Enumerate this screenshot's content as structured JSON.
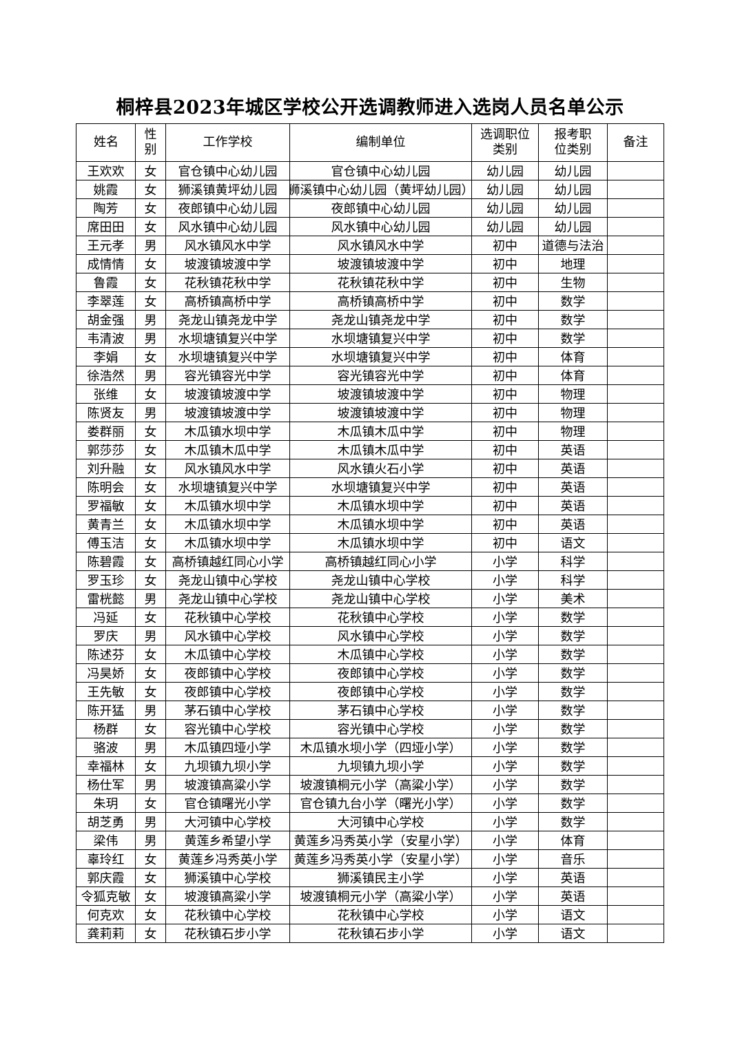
{
  "title": "桐梓县2023年城区学校公开选调教师进入选岗人员名单公示",
  "headers": [
    "姓名",
    "性别",
    "工作学校",
    "编制单位",
    "选调职位类别",
    "报考职位类别",
    "备注"
  ],
  "rows": [
    [
      "王欢欢",
      "女",
      "官仓镇中心幼儿园",
      "官仓镇中心幼儿园",
      "幼儿园",
      "幼儿园",
      ""
    ],
    [
      "姚霞",
      "女",
      "狮溪镇黄坪幼儿园",
      "狮溪镇中心幼儿园（黄坪幼儿园）",
      "幼儿园",
      "幼儿园",
      ""
    ],
    [
      "陶芳",
      "女",
      "夜郎镇中心幼儿园",
      "夜郎镇中心幼儿园",
      "幼儿园",
      "幼儿园",
      ""
    ],
    [
      "席田田",
      "女",
      "风水镇中心幼儿园",
      "风水镇中心幼儿园",
      "幼儿园",
      "幼儿园",
      ""
    ],
    [
      "王元孝",
      "男",
      "风水镇风水中学",
      "风水镇风水中学",
      "初中",
      "道德与法治",
      ""
    ],
    [
      "成情情",
      "女",
      "坡渡镇坡渡中学",
      "坡渡镇坡渡中学",
      "初中",
      "地理",
      ""
    ],
    [
      "鲁霞",
      "女",
      "花秋镇花秋中学",
      "花秋镇花秋中学",
      "初中",
      "生物",
      ""
    ],
    [
      "李翠莲",
      "女",
      "高桥镇高桥中学",
      "高桥镇高桥中学",
      "初中",
      "数学",
      ""
    ],
    [
      "胡金强",
      "男",
      "尧龙山镇尧龙中学",
      "尧龙山镇尧龙中学",
      "初中",
      "数学",
      ""
    ],
    [
      "韦清波",
      "男",
      "水坝塘镇复兴中学",
      "水坝塘镇复兴中学",
      "初中",
      "数学",
      ""
    ],
    [
      "李娟",
      "女",
      "水坝塘镇复兴中学",
      "水坝塘镇复兴中学",
      "初中",
      "体育",
      ""
    ],
    [
      "徐浩然",
      "男",
      "容光镇容光中学",
      "容光镇容光中学",
      "初中",
      "体育",
      ""
    ],
    [
      "张维",
      "女",
      "坡渡镇坡渡中学",
      "坡渡镇坡渡中学",
      "初中",
      "物理",
      ""
    ],
    [
      "陈贤友",
      "男",
      "坡渡镇坡渡中学",
      "坡渡镇坡渡中学",
      "初中",
      "物理",
      ""
    ],
    [
      "娄群丽",
      "女",
      "木瓜镇水坝中学",
      "木瓜镇木瓜中学",
      "初中",
      "物理",
      ""
    ],
    [
      "郭莎莎",
      "女",
      "木瓜镇木瓜中学",
      "木瓜镇木瓜中学",
      "初中",
      "英语",
      ""
    ],
    [
      "刘升融",
      "女",
      "风水镇风水中学",
      "风水镇火石小学",
      "初中",
      "英语",
      ""
    ],
    [
      "陈明会",
      "女",
      "水坝塘镇复兴中学",
      "水坝塘镇复兴中学",
      "初中",
      "英语",
      ""
    ],
    [
      "罗福敏",
      "女",
      "木瓜镇水坝中学",
      "木瓜镇水坝中学",
      "初中",
      "英语",
      ""
    ],
    [
      "黄青兰",
      "女",
      "木瓜镇水坝中学",
      "木瓜镇水坝中学",
      "初中",
      "英语",
      ""
    ],
    [
      "傅玉洁",
      "女",
      "木瓜镇水坝中学",
      "木瓜镇水坝中学",
      "初中",
      "语文",
      ""
    ],
    [
      "陈碧霞",
      "女",
      "高桥镇越红同心小学",
      "高桥镇越红同心小学",
      "小学",
      "科学",
      ""
    ],
    [
      "罗玉珍",
      "女",
      "尧龙山镇中心学校",
      "尧龙山镇中心学校",
      "小学",
      "科学",
      ""
    ],
    [
      "雷桄懿",
      "男",
      "尧龙山镇中心学校",
      "尧龙山镇中心学校",
      "小学",
      "美术",
      ""
    ],
    [
      "冯延",
      "女",
      "花秋镇中心学校",
      "花秋镇中心学校",
      "小学",
      "数学",
      ""
    ],
    [
      "罗庆",
      "男",
      "风水镇中心学校",
      "风水镇中心学校",
      "小学",
      "数学",
      ""
    ],
    [
      "陈述芬",
      "女",
      "木瓜镇中心学校",
      "木瓜镇中心学校",
      "小学",
      "数学",
      ""
    ],
    [
      "冯昊娇",
      "女",
      "夜郎镇中心学校",
      "夜郎镇中心学校",
      "小学",
      "数学",
      ""
    ],
    [
      "王先敏",
      "女",
      "夜郎镇中心学校",
      "夜郎镇中心学校",
      "小学",
      "数学",
      ""
    ],
    [
      "陈开猛",
      "男",
      "茅石镇中心学校",
      "茅石镇中心学校",
      "小学",
      "数学",
      ""
    ],
    [
      "杨群",
      "女",
      "容光镇中心学校",
      "容光镇中心学校",
      "小学",
      "数学",
      ""
    ],
    [
      "骆波",
      "男",
      "木瓜镇四垭小学",
      "木瓜镇水坝小学（四垭小学）",
      "小学",
      "数学",
      ""
    ],
    [
      "幸福林",
      "女",
      "九坝镇九坝小学",
      "九坝镇九坝小学",
      "小学",
      "数学",
      ""
    ],
    [
      "杨仕军",
      "男",
      "坡渡镇高粱小学",
      "坡渡镇桐元小学（高粱小学）",
      "小学",
      "数学",
      ""
    ],
    [
      "朱玥",
      "女",
      "官仓镇曙光小学",
      "官仓镇九台小学（曙光小学）",
      "小学",
      "数学",
      ""
    ],
    [
      "胡芝勇",
      "男",
      "大河镇中心学校",
      "大河镇中心学校",
      "小学",
      "数学",
      ""
    ],
    [
      "梁伟",
      "男",
      "黄莲乡希望小学",
      "黄莲乡冯秀英小学（安星小学）",
      "小学",
      "体育",
      ""
    ],
    [
      "辜玲红",
      "女",
      "黄莲乡冯秀英小学",
      "黄莲乡冯秀英小学（安星小学）",
      "小学",
      "音乐",
      ""
    ],
    [
      "郭庆霞",
      "女",
      "狮溪镇中心学校",
      "狮溪镇民主小学",
      "小学",
      "英语",
      ""
    ],
    [
      "令狐克敏",
      "女",
      "坡渡镇高粱小学",
      "坡渡镇桐元小学（高粱小学）",
      "小学",
      "英语",
      ""
    ],
    [
      "何克欢",
      "女",
      "花秋镇中心学校",
      "花秋镇中心学校",
      "小学",
      "语文",
      ""
    ],
    [
      "龚莉莉",
      "女",
      "花秋镇石步小学",
      "花秋镇石步小学",
      "小学",
      "语文",
      ""
    ]
  ]
}
